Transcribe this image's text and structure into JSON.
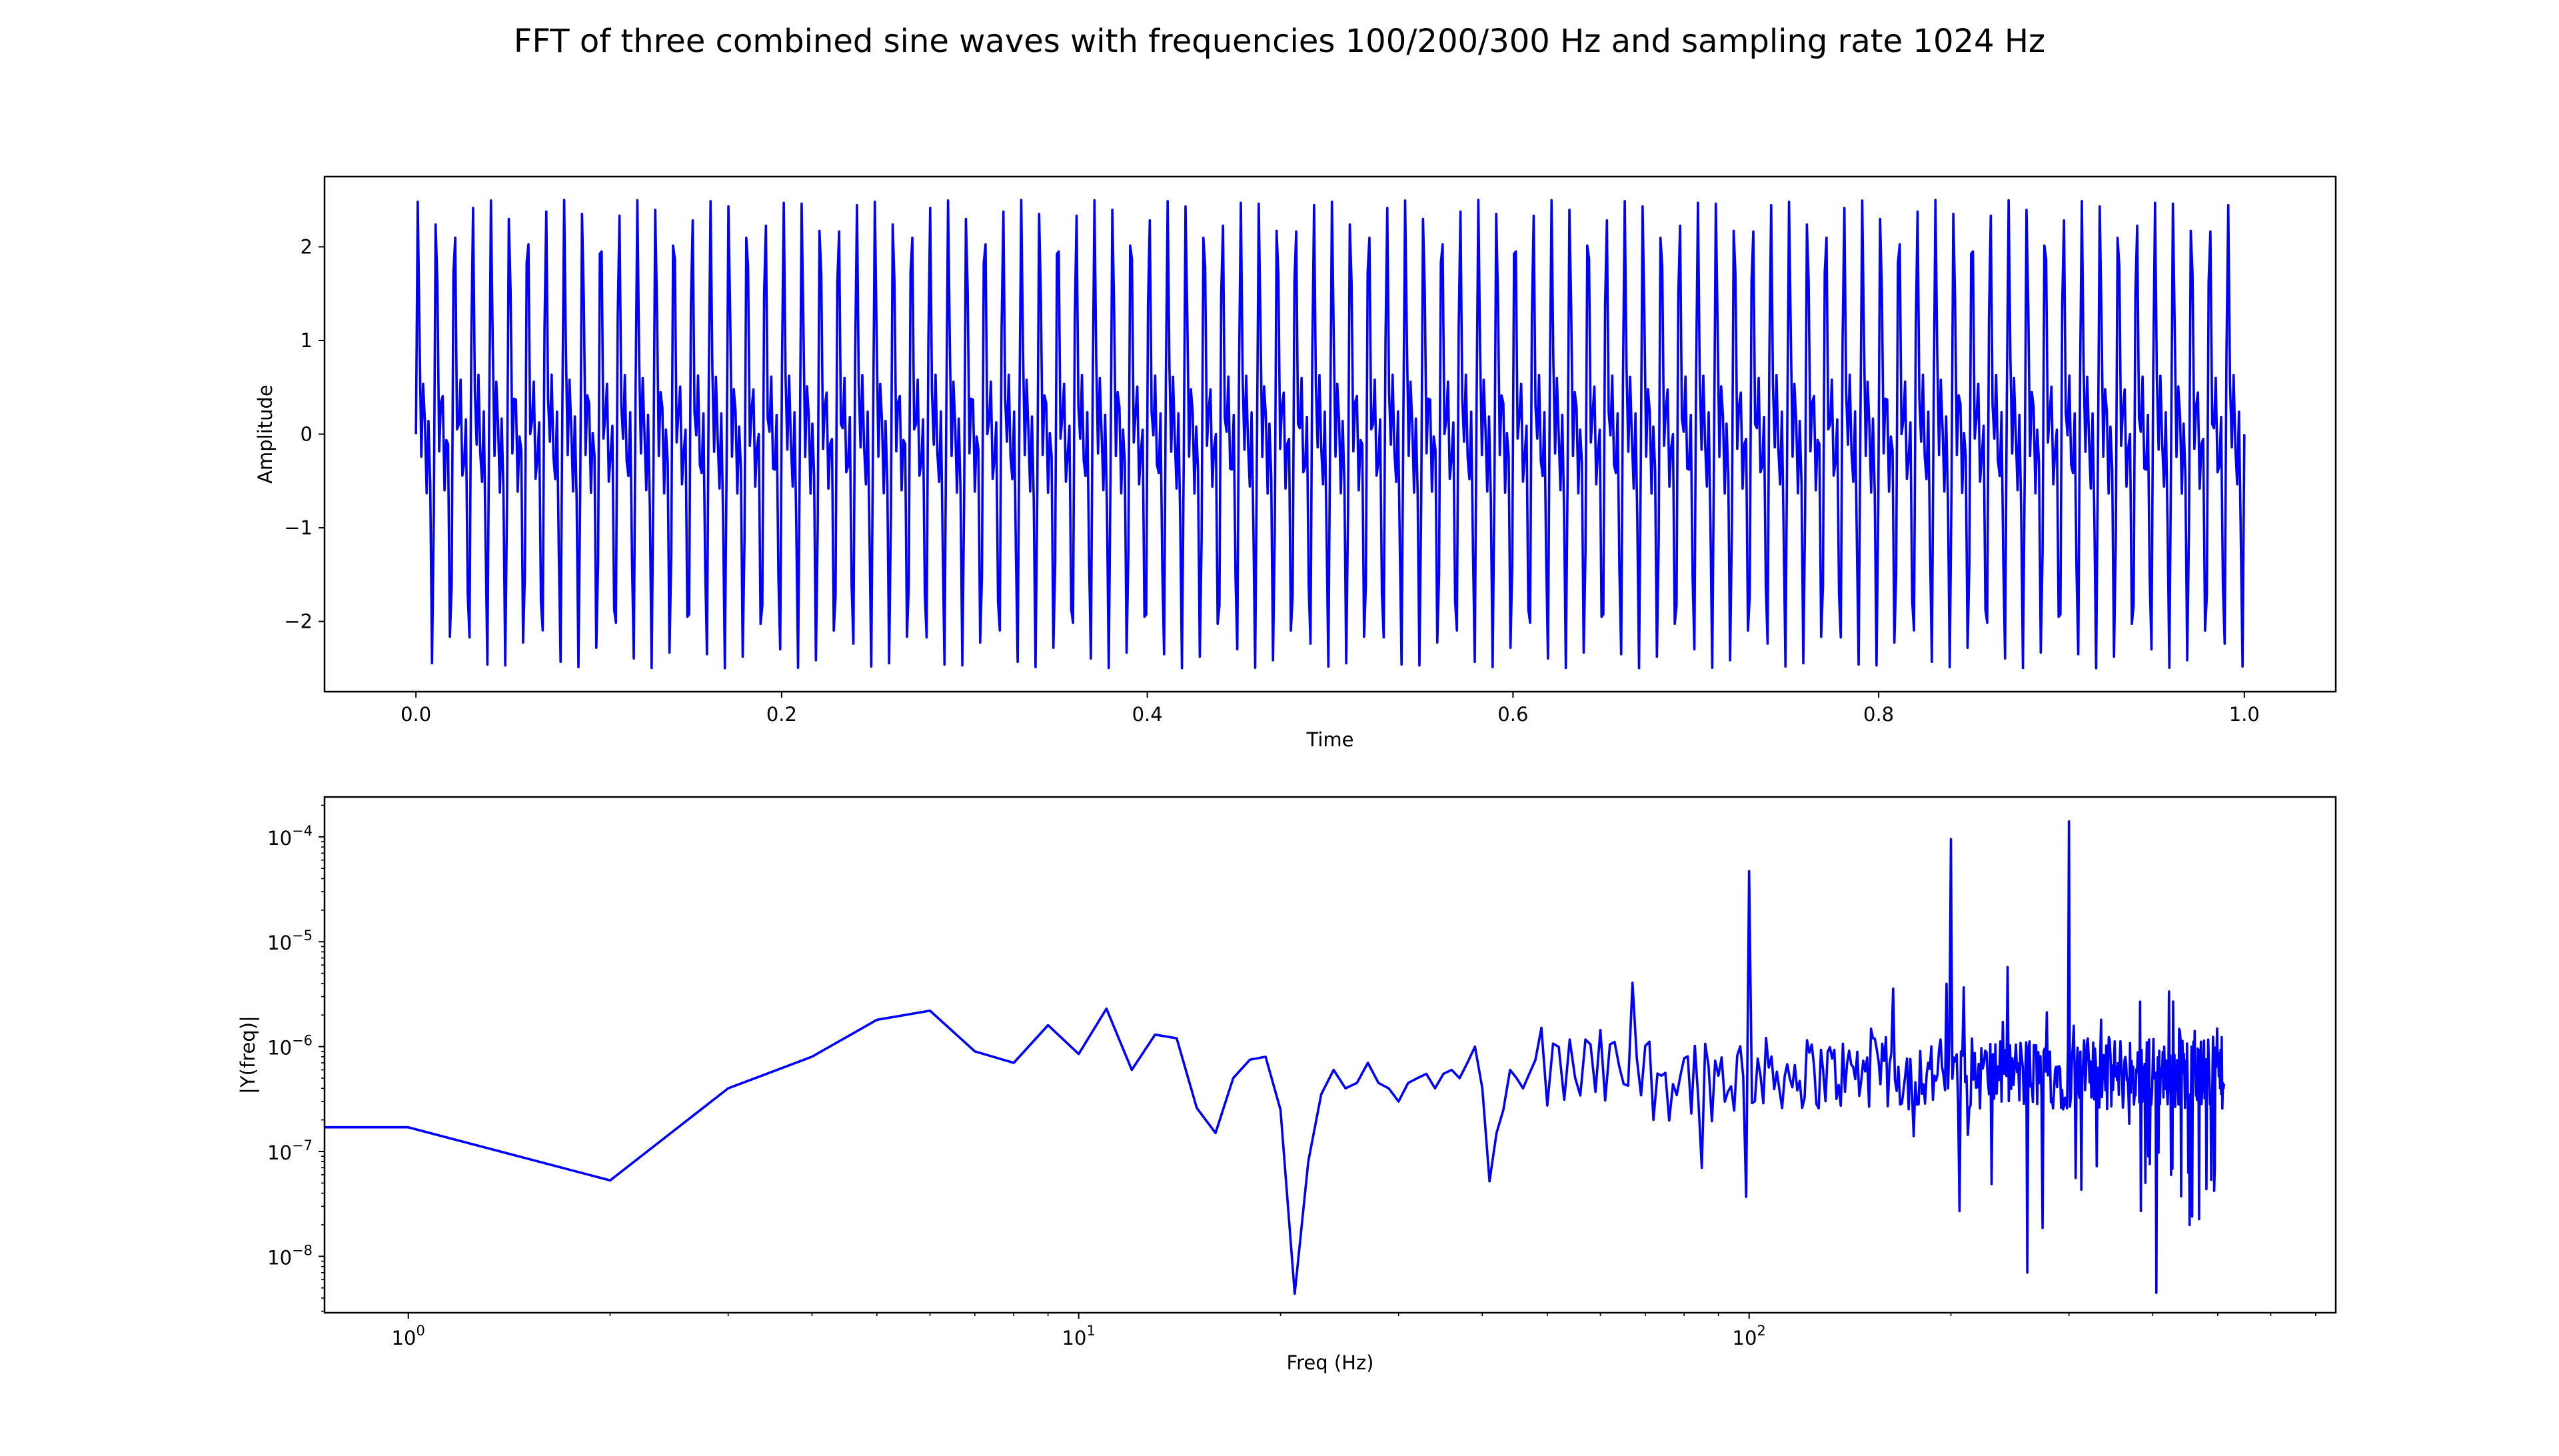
{
  "figure": {
    "title": "FFT of three combined sine waves with frequencies 100/200/300 Hz and sampling rate 1024 Hz"
  },
  "chart_data": [
    {
      "type": "line",
      "xlabel": "Time",
      "ylabel": "Amplitude",
      "xlim": [
        -0.05,
        1.05
      ],
      "ylim": [
        -2.75,
        2.75
      ],
      "x_ticks": [
        0.0,
        0.2,
        0.4,
        0.6,
        0.8,
        1.0
      ],
      "x_tick_labels": [
        "0.0",
        "0.2",
        "0.4",
        "0.6",
        "0.8",
        "1.0"
      ],
      "y_ticks": [
        2,
        1,
        0,
        -1,
        -2
      ],
      "y_tick_labels": [
        "2",
        "1",
        "0",
        "−1",
        "−2"
      ],
      "grid": false,
      "color": "#0000ff",
      "signal": {
        "components_hz": [
          100,
          200,
          300
        ],
        "amplitude_each": 1,
        "sampling_rate_hz": 1024,
        "t_start": 0,
        "t_end": 1
      }
    },
    {
      "type": "line",
      "xlabel": "Freq (Hz)",
      "ylabel": "|Y(freq)|",
      "x_scale": "log",
      "y_scale": "log",
      "xlim": [
        0.75,
        750
      ],
      "ylim": [
        2.9e-09,
        0.00024
      ],
      "x_ticks": [
        1,
        10,
        100
      ],
      "x_tick_labels": [
        {
          "base": "10",
          "exp": "0"
        },
        {
          "base": "10",
          "exp": "1"
        },
        {
          "base": "10",
          "exp": "2"
        }
      ],
      "y_ticks": [
        0.0001,
        1e-05,
        1e-06,
        1e-07,
        1e-08
      ],
      "y_tick_labels": [
        {
          "base": "10",
          "exp": "−4"
        },
        {
          "base": "10",
          "exp": "−5"
        },
        {
          "base": "10",
          "exp": "−6"
        },
        {
          "base": "10",
          "exp": "−7"
        },
        {
          "base": "10",
          "exp": "−8"
        }
      ],
      "grid": false,
      "color": "#0000ff",
      "low_freq_points": [
        [
          0,
          1.7e-07
        ],
        [
          1,
          1.7e-07
        ],
        [
          2,
          5.3e-08
        ],
        [
          3,
          4e-07
        ],
        [
          4,
          8e-07
        ],
        [
          5,
          1.8e-06
        ],
        [
          6,
          2.2e-06
        ],
        [
          7,
          9e-07
        ],
        [
          8,
          7e-07
        ],
        [
          9,
          1.6e-06
        ],
        [
          10,
          8.5e-07
        ],
        [
          11,
          2.3e-06
        ],
        [
          12,
          6e-07
        ],
        [
          13,
          1.3e-06
        ],
        [
          14,
          1.2e-06
        ],
        [
          15,
          2.6e-07
        ],
        [
          16,
          1.5e-07
        ],
        [
          17,
          5e-07
        ],
        [
          18,
          7.5e-07
        ],
        [
          19,
          8e-07
        ],
        [
          20,
          2.5e-07
        ],
        [
          21,
          4.4e-09
        ],
        [
          22,
          8e-08
        ],
        [
          23,
          3.5e-07
        ],
        [
          24,
          6e-07
        ],
        [
          25,
          4e-07
        ],
        [
          26,
          4.5e-07
        ],
        [
          27,
          7e-07
        ],
        [
          28,
          4.5e-07
        ],
        [
          29,
          4e-07
        ],
        [
          30,
          3e-07
        ],
        [
          31,
          4.5e-07
        ],
        [
          32,
          5e-07
        ],
        [
          33,
          5.5e-07
        ],
        [
          34,
          4e-07
        ],
        [
          35,
          5.5e-07
        ],
        [
          36,
          6e-07
        ],
        [
          37,
          5e-07
        ],
        [
          38,
          7e-07
        ],
        [
          39,
          1e-06
        ],
        [
          40,
          4e-07
        ],
        [
          41,
          5.2e-08
        ],
        [
          42,
          1.5e-07
        ],
        [
          43,
          2.5e-07
        ],
        [
          44,
          6e-07
        ],
        [
          45,
          5e-07
        ],
        [
          46,
          4e-07
        ],
        [
          47,
          5.5e-07
        ]
      ],
      "peaks": [
        [
          100,
          4.7e-05
        ],
        [
          200,
          9.5e-05
        ],
        [
          300,
          0.00014
        ]
      ],
      "dips": [
        [
          200,
          1.2e-08
        ],
        [
          260,
          7e-09
        ],
        [
          405,
          4.5e-09
        ]
      ],
      "noise_floor": 6e-07,
      "f_max": 511
    }
  ]
}
